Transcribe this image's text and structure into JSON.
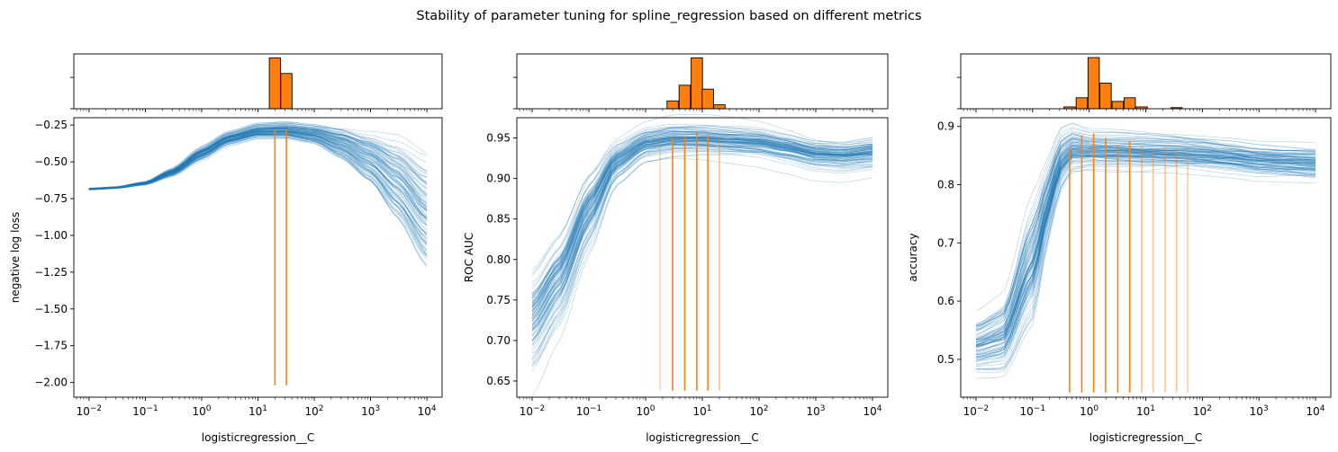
{
  "chart_data": {
    "title": "Stability of parameter tuning for spline_regression based on different metrics",
    "type": "line",
    "colors": {
      "curves": "#1f77b4",
      "highlight": "#ff7f0e",
      "histogram": "#ff7f0e"
    },
    "x_log_scale": true,
    "panels": [
      {
        "xlabel": "logisticregression__C",
        "ylabel": "negative log loss",
        "xlim": [
          0.01,
          10000
        ],
        "ylim": [
          -2.1,
          -0.2
        ],
        "yticks": [
          -2.0,
          -1.75,
          -1.5,
          -1.25,
          -1.0,
          -0.75,
          -0.5,
          -0.25
        ],
        "ytick_labels": [
          "−2.00",
          "−1.75",
          "−1.50",
          "−1.25",
          "−1.00",
          "−0.75",
          "−0.50",
          "−0.25"
        ],
        "xtick_labels": [
          "10−2",
          "10−1",
          "100",
          "101",
          "102",
          "103",
          "104"
        ],
        "curve_family": {
          "count": 100,
          "x": [
            0.01,
            0.03,
            0.1,
            0.3,
            1,
            3,
            10,
            30,
            100,
            300,
            1000,
            3000,
            10000
          ],
          "mean": [
            -0.685,
            -0.675,
            -0.645,
            -0.57,
            -0.44,
            -0.34,
            -0.29,
            -0.285,
            -0.31,
            -0.37,
            -0.47,
            -0.62,
            -0.85
          ],
          "spread": [
            0.003,
            0.003,
            0.005,
            0.012,
            0.02,
            0.02,
            0.022,
            0.025,
            0.03,
            0.05,
            0.08,
            0.13,
            0.18
          ]
        },
        "selected_C": [
          {
            "x": 20,
            "y": -0.28,
            "alpha": 1.0
          },
          {
            "x": 32,
            "y": -0.28,
            "alpha": 1.0
          }
        ],
        "vline_bottom": -2.02,
        "histogram": {
          "bins": [
            {
              "x": 20,
              "count": 13
            },
            {
              "x": 32,
              "count": 9
            }
          ],
          "ymax": 14
        }
      },
      {
        "xlabel": "logisticregression__C",
        "ylabel": "ROC AUC",
        "xlim": [
          0.01,
          10000
        ],
        "ylim": [
          0.63,
          0.975
        ],
        "yticks": [
          0.65,
          0.7,
          0.75,
          0.8,
          0.85,
          0.9,
          0.95
        ],
        "ytick_labels": [
          "0.65",
          "0.70",
          "0.75",
          "0.80",
          "0.85",
          "0.90",
          "0.95"
        ],
        "xtick_labels": [
          "10−2",
          "10−1",
          "100",
          "101",
          "102",
          "103",
          "104"
        ],
        "curve_family": {
          "count": 100,
          "x": [
            0.01,
            0.03,
            0.1,
            0.3,
            1,
            3,
            10,
            30,
            100,
            300,
            1000,
            3000,
            10000
          ],
          "mean": [
            0.725,
            0.775,
            0.86,
            0.92,
            0.943,
            0.948,
            0.948,
            0.946,
            0.944,
            0.938,
            0.93,
            0.928,
            0.932
          ],
          "spread": [
            0.025,
            0.022,
            0.018,
            0.01,
            0.008,
            0.008,
            0.008,
            0.008,
            0.008,
            0.008,
            0.008,
            0.008,
            0.008
          ]
        },
        "selected_C": [
          {
            "x": 1.8,
            "y": 0.948,
            "alpha": 0.35
          },
          {
            "x": 3.0,
            "y": 0.95,
            "alpha": 1.0
          },
          {
            "x": 4.9,
            "y": 0.952,
            "alpha": 1.0
          },
          {
            "x": 8.0,
            "y": 0.957,
            "alpha": 1.0
          },
          {
            "x": 12.5,
            "y": 0.954,
            "alpha": 1.0
          },
          {
            "x": 20,
            "y": 0.95,
            "alpha": 0.5
          }
        ],
        "vline_bottom": 0.638,
        "histogram": {
          "bins": [
            {
              "x": 3.0,
              "count": 2
            },
            {
              "x": 4.9,
              "count": 6
            },
            {
              "x": 8.0,
              "count": 13
            },
            {
              "x": 12.5,
              "count": 5
            },
            {
              "x": 20,
              "count": 1
            }
          ],
          "ymax": 14
        }
      },
      {
        "xlabel": "logisticregression__C",
        "ylabel": "accuracy",
        "xlim": [
          0.01,
          10000
        ],
        "ylim": [
          0.435,
          0.915
        ],
        "yticks": [
          0.5,
          0.6,
          0.7,
          0.8,
          0.9
        ],
        "ytick_labels": [
          "0.5",
          "0.6",
          "0.7",
          "0.8",
          "0.9"
        ],
        "xtick_labels": [
          "10−2",
          "10−1",
          "100",
          "101",
          "102",
          "103",
          "104"
        ],
        "curve_family": {
          "count": 100,
          "x": [
            0.01,
            0.03,
            0.1,
            0.2,
            0.3,
            0.5,
            1,
            3,
            10,
            30,
            100,
            300,
            1000,
            3000,
            10000
          ],
          "mean": [
            0.525,
            0.54,
            0.67,
            0.78,
            0.84,
            0.862,
            0.86,
            0.858,
            0.856,
            0.855,
            0.852,
            0.848,
            0.842,
            0.84,
            0.838
          ],
          "spread": [
            0.02,
            0.025,
            0.04,
            0.025,
            0.02,
            0.015,
            0.012,
            0.012,
            0.012,
            0.012,
            0.012,
            0.012,
            0.012,
            0.012,
            0.012
          ]
        },
        "selected_C": [
          {
            "x": 0.45,
            "y": 0.862,
            "alpha": 1.0
          },
          {
            "x": 0.74,
            "y": 0.885,
            "alpha": 1.0
          },
          {
            "x": 1.2,
            "y": 0.888,
            "alpha": 1.0
          },
          {
            "x": 1.95,
            "y": 0.88,
            "alpha": 1.0
          },
          {
            "x": 3.2,
            "y": 0.868,
            "alpha": 1.0
          },
          {
            "x": 5.2,
            "y": 0.875,
            "alpha": 1.0
          },
          {
            "x": 8.5,
            "y": 0.865,
            "alpha": 0.5
          },
          {
            "x": 13.5,
            "y": 0.86,
            "alpha": 0.45
          },
          {
            "x": 22,
            "y": 0.865,
            "alpha": 0.45
          },
          {
            "x": 35,
            "y": 0.862,
            "alpha": 0.45
          },
          {
            "x": 55,
            "y": 0.855,
            "alpha": 0.4
          }
        ],
        "vline_bottom": 0.443,
        "histogram": {
          "bins": [
            {
              "x": 0.45,
              "count": 0.5
            },
            {
              "x": 0.74,
              "count": 3
            },
            {
              "x": 1.2,
              "count": 14
            },
            {
              "x": 1.95,
              "count": 7
            },
            {
              "x": 3.2,
              "count": 2
            },
            {
              "x": 5.2,
              "count": 3
            },
            {
              "x": 8.5,
              "count": 0.5
            },
            {
              "x": 35,
              "count": 0.3
            }
          ],
          "ymax": 15
        }
      }
    ]
  }
}
